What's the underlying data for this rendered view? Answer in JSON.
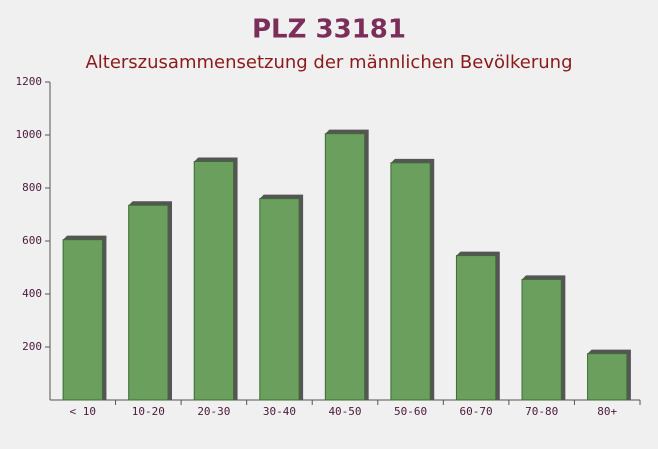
{
  "chart_data": {
    "type": "bar",
    "title": "PLZ 33181",
    "subtitle": "Alterszusammensetzung der männlichen Bevölkerung",
    "categories": [
      "< 10",
      "10-20",
      "20-30",
      "30-40",
      "40-50",
      "50-60",
      "60-70",
      "70-80",
      "80+"
    ],
    "values": [
      605,
      735,
      900,
      760,
      1005,
      895,
      545,
      455,
      175
    ],
    "color": "#6a9f5e",
    "ylim": [
      0,
      1200
    ],
    "yticks": [
      200,
      400,
      600,
      800,
      1000,
      1200
    ]
  }
}
